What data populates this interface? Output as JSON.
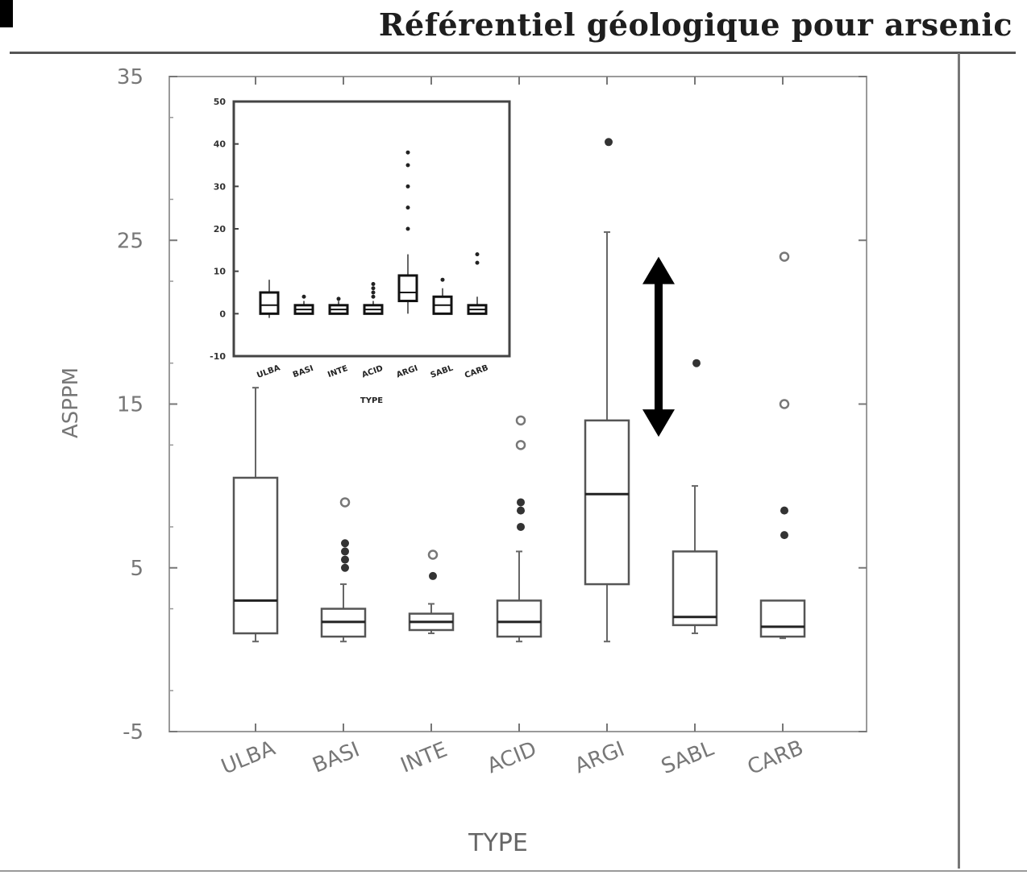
{
  "page": {
    "title": "Référentiel géologique pour arsenic"
  },
  "chart_data": {
    "type": "box",
    "xlabel": "TYPE",
    "ylabel": "ASPPM",
    "ylim": [
      -5,
      35
    ],
    "yticks": [
      "-5",
      "5",
      "15",
      "25",
      "35"
    ],
    "categories": [
      "ULBA",
      "BASI",
      "INTE",
      "ACID",
      "ARGI",
      "SABL",
      "CARB"
    ],
    "boxes": [
      {
        "category": "ULBA",
        "whisker_low": 0.5,
        "q1": 1,
        "median": 3,
        "q3": 10.5,
        "whisker_high": 16,
        "outliers_star": [],
        "outliers_circle": []
      },
      {
        "category": "BASI",
        "whisker_low": 0.5,
        "q1": 0.8,
        "median": 1.7,
        "q3": 2.5,
        "whisker_high": 4,
        "outliers_star": [
          5,
          5.5,
          6,
          6.5
        ],
        "outliers_circle": [
          9
        ]
      },
      {
        "category": "INTE",
        "whisker_low": 1,
        "q1": 1.2,
        "median": 1.7,
        "q3": 2.2,
        "whisker_high": 2.8,
        "outliers_star": [
          4.5
        ],
        "outliers_circle": [
          5.8
        ]
      },
      {
        "category": "ACID",
        "whisker_low": 0.5,
        "q1": 0.8,
        "median": 1.7,
        "q3": 3,
        "whisker_high": 6,
        "outliers_star": [
          7.5,
          8.5,
          9
        ],
        "outliers_circle": [
          12.5,
          14
        ]
      },
      {
        "category": "ARGI",
        "whisker_low": 0.5,
        "q1": 4,
        "median": 9.5,
        "q3": 14,
        "whisker_high": 25.5,
        "outliers_star": [
          31
        ],
        "outliers_circle": []
      },
      {
        "category": "SABL",
        "whisker_low": 1,
        "q1": 1.5,
        "median": 2,
        "q3": 6,
        "whisker_high": 10,
        "outliers_star": [
          17.5
        ],
        "outliers_circle": []
      },
      {
        "category": "CARB",
        "whisker_low": 0.7,
        "q1": 0.8,
        "median": 1.4,
        "q3": 3,
        "whisker_high": 3,
        "outliers_star": [
          7,
          8.5
        ],
        "outliers_circle": [
          15,
          24
        ]
      }
    ],
    "annotation": "double-headed arrow beside ARGI spanning 13 to 24",
    "inset": {
      "ylim": [
        -10,
        50
      ],
      "yticks": [
        "-10",
        "0",
        "10",
        "20",
        "30",
        "40",
        "50"
      ],
      "boxes": [
        {
          "whisker_low": -1,
          "q1": 0,
          "median": 2,
          "q3": 5,
          "whisker_high": 8,
          "outliers": []
        },
        {
          "whisker_low": 0,
          "q1": 0,
          "median": 1,
          "q3": 2,
          "whisker_high": 3,
          "outliers": [
            4
          ]
        },
        {
          "whisker_low": 0,
          "q1": 0,
          "median": 1,
          "q3": 2,
          "whisker_high": 3,
          "outliers": [
            3.5
          ]
        },
        {
          "whisker_low": 0,
          "q1": 0,
          "median": 1,
          "q3": 2,
          "whisker_high": 3,
          "outliers": [
            4,
            5,
            6,
            7
          ]
        },
        {
          "whisker_low": 0,
          "q1": 3,
          "median": 5,
          "q3": 9,
          "whisker_high": 14,
          "outliers": [
            20,
            25,
            30,
            35,
            38
          ]
        },
        {
          "whisker_low": 0,
          "q1": 0,
          "median": 2,
          "q3": 4,
          "whisker_high": 6,
          "outliers": [
            8
          ]
        },
        {
          "whisker_low": 0,
          "q1": 0,
          "median": 1,
          "q3": 2,
          "whisker_high": 4,
          "outliers": [
            12,
            14
          ]
        }
      ]
    }
  }
}
